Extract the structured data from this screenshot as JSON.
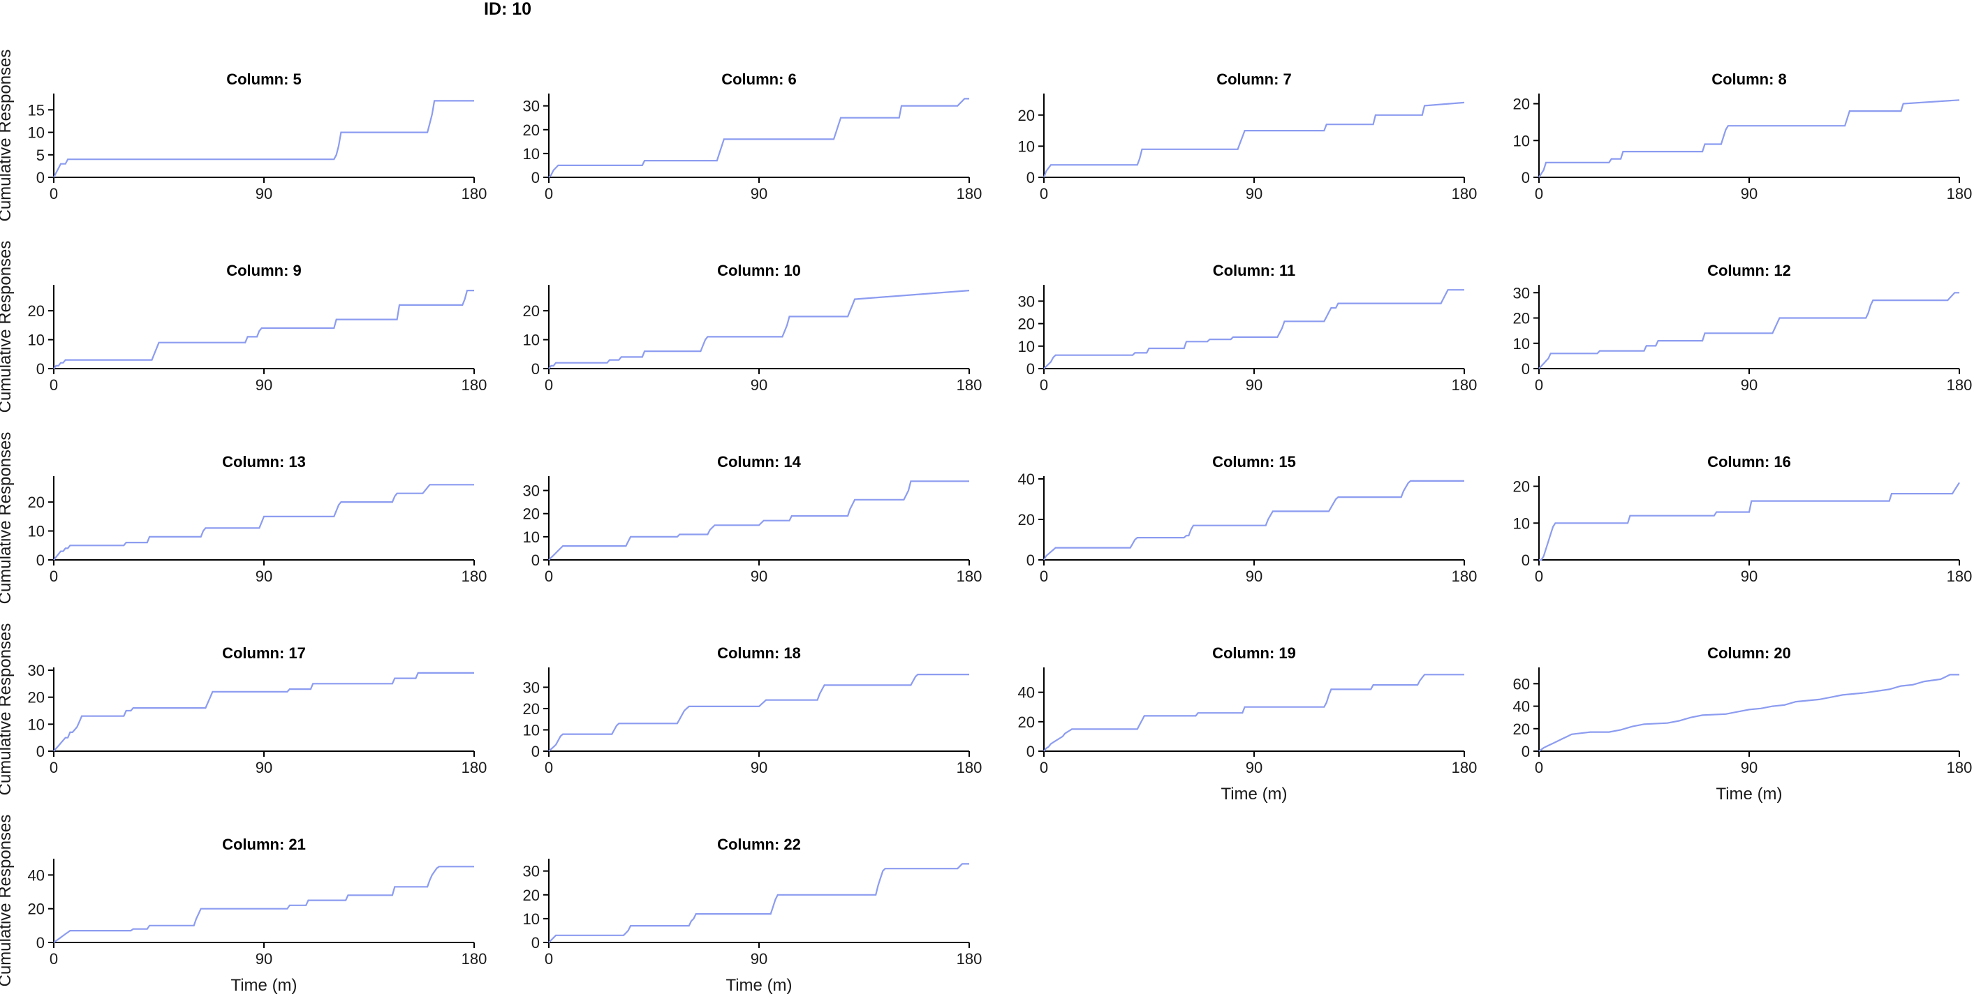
{
  "figure_title": "ID: 10",
  "colors": {
    "series": "#8c9cf0",
    "axis": "#000000"
  },
  "chart_data": [
    {
      "type": "line",
      "title": "Column: 5",
      "xlabel": "",
      "ylabel": "Cumulative Responses",
      "xlim": [
        0,
        180
      ],
      "ylim": [
        0,
        18
      ],
      "xticks": [
        0,
        90,
        180
      ],
      "yticks": [
        0,
        5,
        10,
        15
      ],
      "x": [
        0,
        1,
        2,
        3,
        5,
        6,
        120,
        121,
        122,
        123,
        160,
        161,
        162,
        163,
        180
      ],
      "y": [
        0,
        1,
        2,
        3,
        3,
        4,
        4,
        5,
        7,
        10,
        10,
        12,
        14,
        17,
        17
      ]
    },
    {
      "type": "line",
      "title": "Column: 6",
      "xlabel": "",
      "ylabel": "",
      "xlim": [
        0,
        180
      ],
      "ylim": [
        0,
        34
      ],
      "xticks": [
        0,
        90,
        180
      ],
      "yticks": [
        0,
        10,
        20,
        30
      ],
      "x": [
        0,
        1,
        2,
        3,
        4,
        5,
        40,
        41,
        72,
        73,
        74,
        75,
        122,
        123,
        124,
        125,
        150,
        151,
        175,
        176,
        177,
        178,
        180
      ],
      "y": [
        0,
        1,
        3,
        4,
        5,
        5,
        5,
        7,
        7,
        10,
        13,
        16,
        16,
        19,
        22,
        25,
        25,
        30,
        30,
        31,
        32,
        33,
        33
      ]
    },
    {
      "type": "line",
      "title": "Column: 7",
      "xlabel": "",
      "ylabel": "",
      "xlim": [
        0,
        180
      ],
      "ylim": [
        0,
        26
      ],
      "xticks": [
        0,
        90,
        180
      ],
      "yticks": [
        0,
        10,
        20
      ],
      "x": [
        0,
        1,
        2,
        3,
        40,
        41,
        42,
        83,
        84,
        85,
        86,
        120,
        121,
        141,
        142,
        162,
        163,
        180
      ],
      "y": [
        0,
        2,
        3,
        4,
        4,
        6,
        9,
        9,
        11,
        13,
        15,
        15,
        17,
        17,
        20,
        20,
        23,
        24
      ]
    },
    {
      "type": "line",
      "title": "Column: 8",
      "xlabel": "",
      "ylabel": "",
      "xlim": [
        0,
        180
      ],
      "ylim": [
        0,
        22
      ],
      "xticks": [
        0,
        90,
        180
      ],
      "yticks": [
        0,
        10,
        20
      ],
      "x": [
        0,
        1,
        2,
        3,
        30,
        31,
        35,
        36,
        70,
        71,
        78,
        79,
        80,
        81,
        131,
        132,
        133,
        155,
        156,
        180
      ],
      "y": [
        0,
        1,
        2,
        4,
        4,
        5,
        5,
        7,
        7,
        9,
        9,
        11,
        13,
        14,
        14,
        16,
        18,
        18,
        20,
        21
      ]
    },
    {
      "type": "line",
      "title": "Column: 9",
      "xlabel": "",
      "ylabel": "Cumulative Responses",
      "xlim": [
        0,
        180
      ],
      "ylim": [
        0,
        28
      ],
      "xticks": [
        0,
        90,
        180
      ],
      "yticks": [
        0,
        10,
        20
      ],
      "x": [
        0,
        1,
        2,
        3,
        4,
        5,
        42,
        43,
        44,
        45,
        82,
        83,
        87,
        88,
        89,
        120,
        121,
        147,
        148,
        175,
        176,
        177,
        180
      ],
      "y": [
        0,
        1,
        1,
        2,
        2,
        3,
        3,
        5,
        7,
        9,
        9,
        11,
        11,
        13,
        14,
        14,
        17,
        17,
        22,
        22,
        24,
        27,
        27
      ]
    },
    {
      "type": "line",
      "title": "Column: 10",
      "xlabel": "",
      "ylabel": "",
      "xlim": [
        0,
        180
      ],
      "ylim": [
        0,
        28
      ],
      "xticks": [
        0,
        90,
        180
      ],
      "yticks": [
        0,
        10,
        20
      ],
      "x": [
        0,
        1,
        2,
        3,
        25,
        26,
        30,
        31,
        40,
        41,
        65,
        66,
        67,
        68,
        100,
        101,
        102,
        103,
        128,
        129,
        130,
        131,
        180
      ],
      "y": [
        0,
        1,
        1,
        2,
        2,
        3,
        3,
        4,
        4,
        6,
        6,
        8,
        10,
        11,
        11,
        13,
        15,
        18,
        18,
        20,
        22,
        24,
        27
      ]
    },
    {
      "type": "line",
      "title": "Column: 11",
      "xlabel": "",
      "ylabel": "",
      "xlim": [
        0,
        180
      ],
      "ylim": [
        0,
        36
      ],
      "xticks": [
        0,
        90,
        180
      ],
      "yticks": [
        0,
        10,
        20,
        30
      ],
      "x": [
        0,
        1,
        2,
        3,
        4,
        5,
        38,
        39,
        44,
        45,
        60,
        61,
        70,
        71,
        80,
        81,
        100,
        101,
        102,
        103,
        120,
        121,
        122,
        123,
        125,
        126,
        170,
        171,
        172,
        173,
        180
      ],
      "y": [
        0,
        1,
        2,
        3,
        5,
        6,
        6,
        7,
        7,
        9,
        9,
        12,
        12,
        13,
        13,
        14,
        14,
        16,
        18,
        21,
        21,
        23,
        25,
        27,
        27,
        29,
        29,
        31,
        33,
        35,
        35
      ]
    },
    {
      "type": "line",
      "title": "Column: 12",
      "xlabel": "",
      "ylabel": "",
      "xlim": [
        0,
        180
      ],
      "ylim": [
        0,
        32
      ],
      "xticks": [
        0,
        90,
        180
      ],
      "yticks": [
        0,
        10,
        20,
        30
      ],
      "x": [
        0,
        1,
        2,
        3,
        4,
        5,
        25,
        26,
        45,
        46,
        50,
        51,
        70,
        71,
        100,
        101,
        102,
        103,
        140,
        141,
        142,
        143,
        175,
        176,
        177,
        178,
        180
      ],
      "y": [
        0,
        1,
        2,
        3,
        4,
        6,
        6,
        7,
        7,
        9,
        9,
        11,
        11,
        14,
        14,
        16,
        18,
        20,
        20,
        22,
        25,
        27,
        27,
        28,
        29,
        30,
        30
      ]
    },
    {
      "type": "line",
      "title": "Column: 13",
      "xlabel": "",
      "ylabel": "Cumulative Responses",
      "xlim": [
        0,
        180
      ],
      "ylim": [
        0,
        28
      ],
      "xticks": [
        0,
        90,
        180
      ],
      "yticks": [
        0,
        10,
        20
      ],
      "x": [
        0,
        1,
        2,
        3,
        4,
        5,
        6,
        7,
        11,
        12,
        30,
        31,
        40,
        41,
        63,
        64,
        65,
        88,
        89,
        90,
        91,
        120,
        121,
        122,
        123,
        145,
        146,
        147,
        158,
        159,
        160,
        161,
        180
      ],
      "y": [
        0,
        1,
        2,
        3,
        3,
        4,
        4,
        5,
        5,
        5,
        5,
        6,
        6,
        8,
        8,
        10,
        11,
        11,
        13,
        15,
        15,
        15,
        17,
        19,
        20,
        20,
        22,
        23,
        23,
        24,
        25,
        26,
        26
      ]
    },
    {
      "type": "line",
      "title": "Column: 14",
      "xlabel": "",
      "ylabel": "",
      "xlim": [
        0,
        180
      ],
      "ylim": [
        0,
        35
      ],
      "xticks": [
        0,
        90,
        180
      ],
      "yticks": [
        0,
        10,
        20,
        30
      ],
      "x": [
        0,
        1,
        2,
        3,
        4,
        5,
        6,
        7,
        33,
        34,
        35,
        55,
        56,
        68,
        69,
        70,
        71,
        90,
        91,
        92,
        103,
        104,
        128,
        129,
        130,
        131,
        132,
        133,
        152,
        153,
        154,
        155,
        180
      ],
      "y": [
        0,
        1,
        2,
        3,
        4,
        5,
        6,
        6,
        6,
        8,
        10,
        10,
        11,
        11,
        13,
        14,
        15,
        15,
        16,
        17,
        17,
        19,
        19,
        22,
        24,
        26,
        26,
        26,
        26,
        28,
        30,
        34,
        34
      ]
    },
    {
      "type": "line",
      "title": "Column: 15",
      "xlabel": "",
      "ylabel": "",
      "xlim": [
        0,
        180
      ],
      "ylim": [
        0,
        40
      ],
      "xticks": [
        0,
        90,
        180
      ],
      "yticks": [
        0,
        20,
        40
      ],
      "x": [
        0,
        1,
        2,
        3,
        4,
        5,
        36,
        37,
        38,
        39,
        40,
        41,
        60,
        61,
        62,
        63,
        64,
        65,
        95,
        96,
        97,
        98,
        99,
        100,
        122,
        123,
        124,
        125,
        126,
        127,
        153,
        154,
        155,
        156,
        157,
        158,
        180
      ],
      "y": [
        0,
        2,
        3,
        4,
        5,
        6,
        6,
        6,
        8,
        10,
        11,
        11,
        11,
        12,
        12,
        15,
        17,
        17,
        17,
        20,
        22,
        24,
        24,
        24,
        24,
        26,
        28,
        30,
        31,
        31,
        31,
        34,
        36,
        38,
        39,
        39,
        39
      ]
    },
    {
      "type": "line",
      "title": "Column: 16",
      "xlabel": "",
      "ylabel": "",
      "xlim": [
        0,
        180
      ],
      "ylim": [
        0,
        22
      ],
      "xticks": [
        0,
        90,
        180
      ],
      "yticks": [
        0,
        10,
        20
      ],
      "x": [
        0,
        1,
        2,
        3,
        4,
        5,
        6,
        7,
        38,
        39,
        75,
        76,
        90,
        91,
        150,
        151,
        177,
        178,
        179,
        180
      ],
      "y": [
        0,
        0,
        1,
        3,
        5,
        7,
        9,
        10,
        10,
        12,
        12,
        13,
        13,
        16,
        16,
        18,
        18,
        19,
        20,
        21
      ]
    },
    {
      "type": "line",
      "title": "Column: 17",
      "xlabel": "",
      "ylabel": "Cumulative Responses",
      "xlim": [
        0,
        180
      ],
      "ylim": [
        0,
        30
      ],
      "xticks": [
        0,
        90,
        180
      ],
      "yticks": [
        0,
        10,
        20,
        30
      ],
      "x": [
        0,
        1,
        2,
        3,
        4,
        5,
        6,
        7,
        8,
        9,
        10,
        11,
        12,
        13,
        30,
        31,
        33,
        34,
        65,
        66,
        67,
        68,
        100,
        101,
        110,
        111,
        125,
        126,
        145,
        146,
        155,
        156,
        180
      ],
      "y": [
        0,
        1,
        2,
        3,
        4,
        5,
        5,
        7,
        7,
        8,
        9,
        11,
        13,
        13,
        13,
        15,
        15,
        16,
        16,
        18,
        20,
        22,
        22,
        23,
        23,
        25,
        25,
        25,
        25,
        27,
        27,
        29,
        29
      ]
    },
    {
      "type": "line",
      "title": "Column: 18",
      "xlabel": "",
      "ylabel": "",
      "xlim": [
        0,
        180
      ],
      "ylim": [
        0,
        38
      ],
      "xticks": [
        0,
        90,
        180
      ],
      "yticks": [
        0,
        10,
        20,
        30
      ],
      "x": [
        0,
        1,
        2,
        3,
        4,
        5,
        6,
        7,
        27,
        28,
        29,
        30,
        55,
        56,
        57,
        58,
        59,
        60,
        90,
        91,
        92,
        93,
        115,
        116,
        117,
        118,
        155,
        156,
        157,
        158,
        180
      ],
      "y": [
        0,
        1,
        2,
        3,
        5,
        7,
        8,
        8,
        8,
        10,
        12,
        13,
        13,
        15,
        17,
        19,
        20,
        21,
        21,
        22,
        23,
        24,
        24,
        27,
        29,
        31,
        31,
        33,
        35,
        36,
        36
      ]
    },
    {
      "type": "line",
      "title": "Column: 19",
      "xlabel": "Time (m)",
      "ylabel": "",
      "xlim": [
        0,
        180
      ],
      "ylim": [
        0,
        55
      ],
      "xticks": [
        0,
        90,
        180
      ],
      "yticks": [
        0,
        20,
        40
      ],
      "x": [
        0,
        1,
        2,
        3,
        4,
        5,
        6,
        7,
        8,
        9,
        10,
        11,
        12,
        13,
        40,
        41,
        42,
        43,
        65,
        66,
        85,
        86,
        120,
        121,
        122,
        123,
        140,
        141,
        160,
        161,
        162,
        163,
        180
      ],
      "y": [
        0,
        2,
        3,
        5,
        6,
        7,
        8,
        9,
        10,
        12,
        13,
        14,
        15,
        15,
        15,
        18,
        21,
        24,
        24,
        26,
        26,
        30,
        30,
        33,
        38,
        42,
        42,
        45,
        45,
        48,
        50,
        52,
        52
      ]
    },
    {
      "type": "line",
      "title": "Column: 20",
      "xlabel": "Time (m)",
      "ylabel": "",
      "xlim": [
        0,
        180
      ],
      "ylim": [
        0,
        72
      ],
      "xticks": [
        0,
        90,
        180
      ],
      "yticks": [
        0,
        20,
        40,
        60
      ],
      "x": [
        0,
        2,
        4,
        6,
        8,
        10,
        12,
        14,
        18,
        22,
        30,
        35,
        40,
        45,
        55,
        60,
        65,
        70,
        80,
        85,
        90,
        95,
        100,
        105,
        110,
        120,
        125,
        130,
        140,
        150,
        155,
        160,
        165,
        172,
        174,
        176,
        180
      ],
      "y": [
        0,
        3,
        5,
        7,
        9,
        11,
        13,
        15,
        16,
        17,
        17,
        19,
        22,
        24,
        25,
        27,
        30,
        32,
        33,
        35,
        37,
        38,
        40,
        41,
        44,
        46,
        48,
        50,
        52,
        55,
        58,
        59,
        62,
        64,
        66,
        68,
        68
      ]
    },
    {
      "type": "line",
      "title": "Column: 21",
      "xlabel": "Time (m)",
      "ylabel": "Cumulative Responses",
      "xlim": [
        0,
        180
      ],
      "ylim": [
        0,
        48
      ],
      "xticks": [
        0,
        90,
        180
      ],
      "yticks": [
        0,
        20,
        40
      ],
      "x": [
        0,
        1,
        2,
        3,
        4,
        5,
        6,
        7,
        33,
        34,
        40,
        41,
        60,
        61,
        62,
        63,
        100,
        101,
        108,
        109,
        125,
        126,
        145,
        146,
        160,
        161,
        162,
        163,
        164,
        165,
        180
      ],
      "y": [
        0,
        1,
        2,
        3,
        4,
        5,
        6,
        7,
        7,
        8,
        8,
        10,
        10,
        14,
        17,
        20,
        20,
        22,
        22,
        25,
        25,
        28,
        28,
        33,
        33,
        37,
        40,
        42,
        44,
        45,
        45
      ]
    },
    {
      "type": "line",
      "title": "Column: 22",
      "xlabel": "Time (m)",
      "ylabel": "",
      "xlim": [
        0,
        180
      ],
      "ylim": [
        0,
        34
      ],
      "xticks": [
        0,
        90,
        180
      ],
      "yticks": [
        0,
        10,
        20,
        30
      ],
      "x": [
        0,
        1,
        2,
        3,
        32,
        33,
        34,
        35,
        60,
        61,
        62,
        63,
        95,
        96,
        97,
        98,
        140,
        141,
        142,
        143,
        144,
        175,
        176,
        177,
        180
      ],
      "y": [
        0,
        1,
        2,
        3,
        3,
        4,
        5,
        7,
        7,
        9,
        10,
        12,
        12,
        15,
        18,
        20,
        20,
        24,
        27,
        30,
        31,
        31,
        32,
        33,
        33
      ]
    }
  ]
}
